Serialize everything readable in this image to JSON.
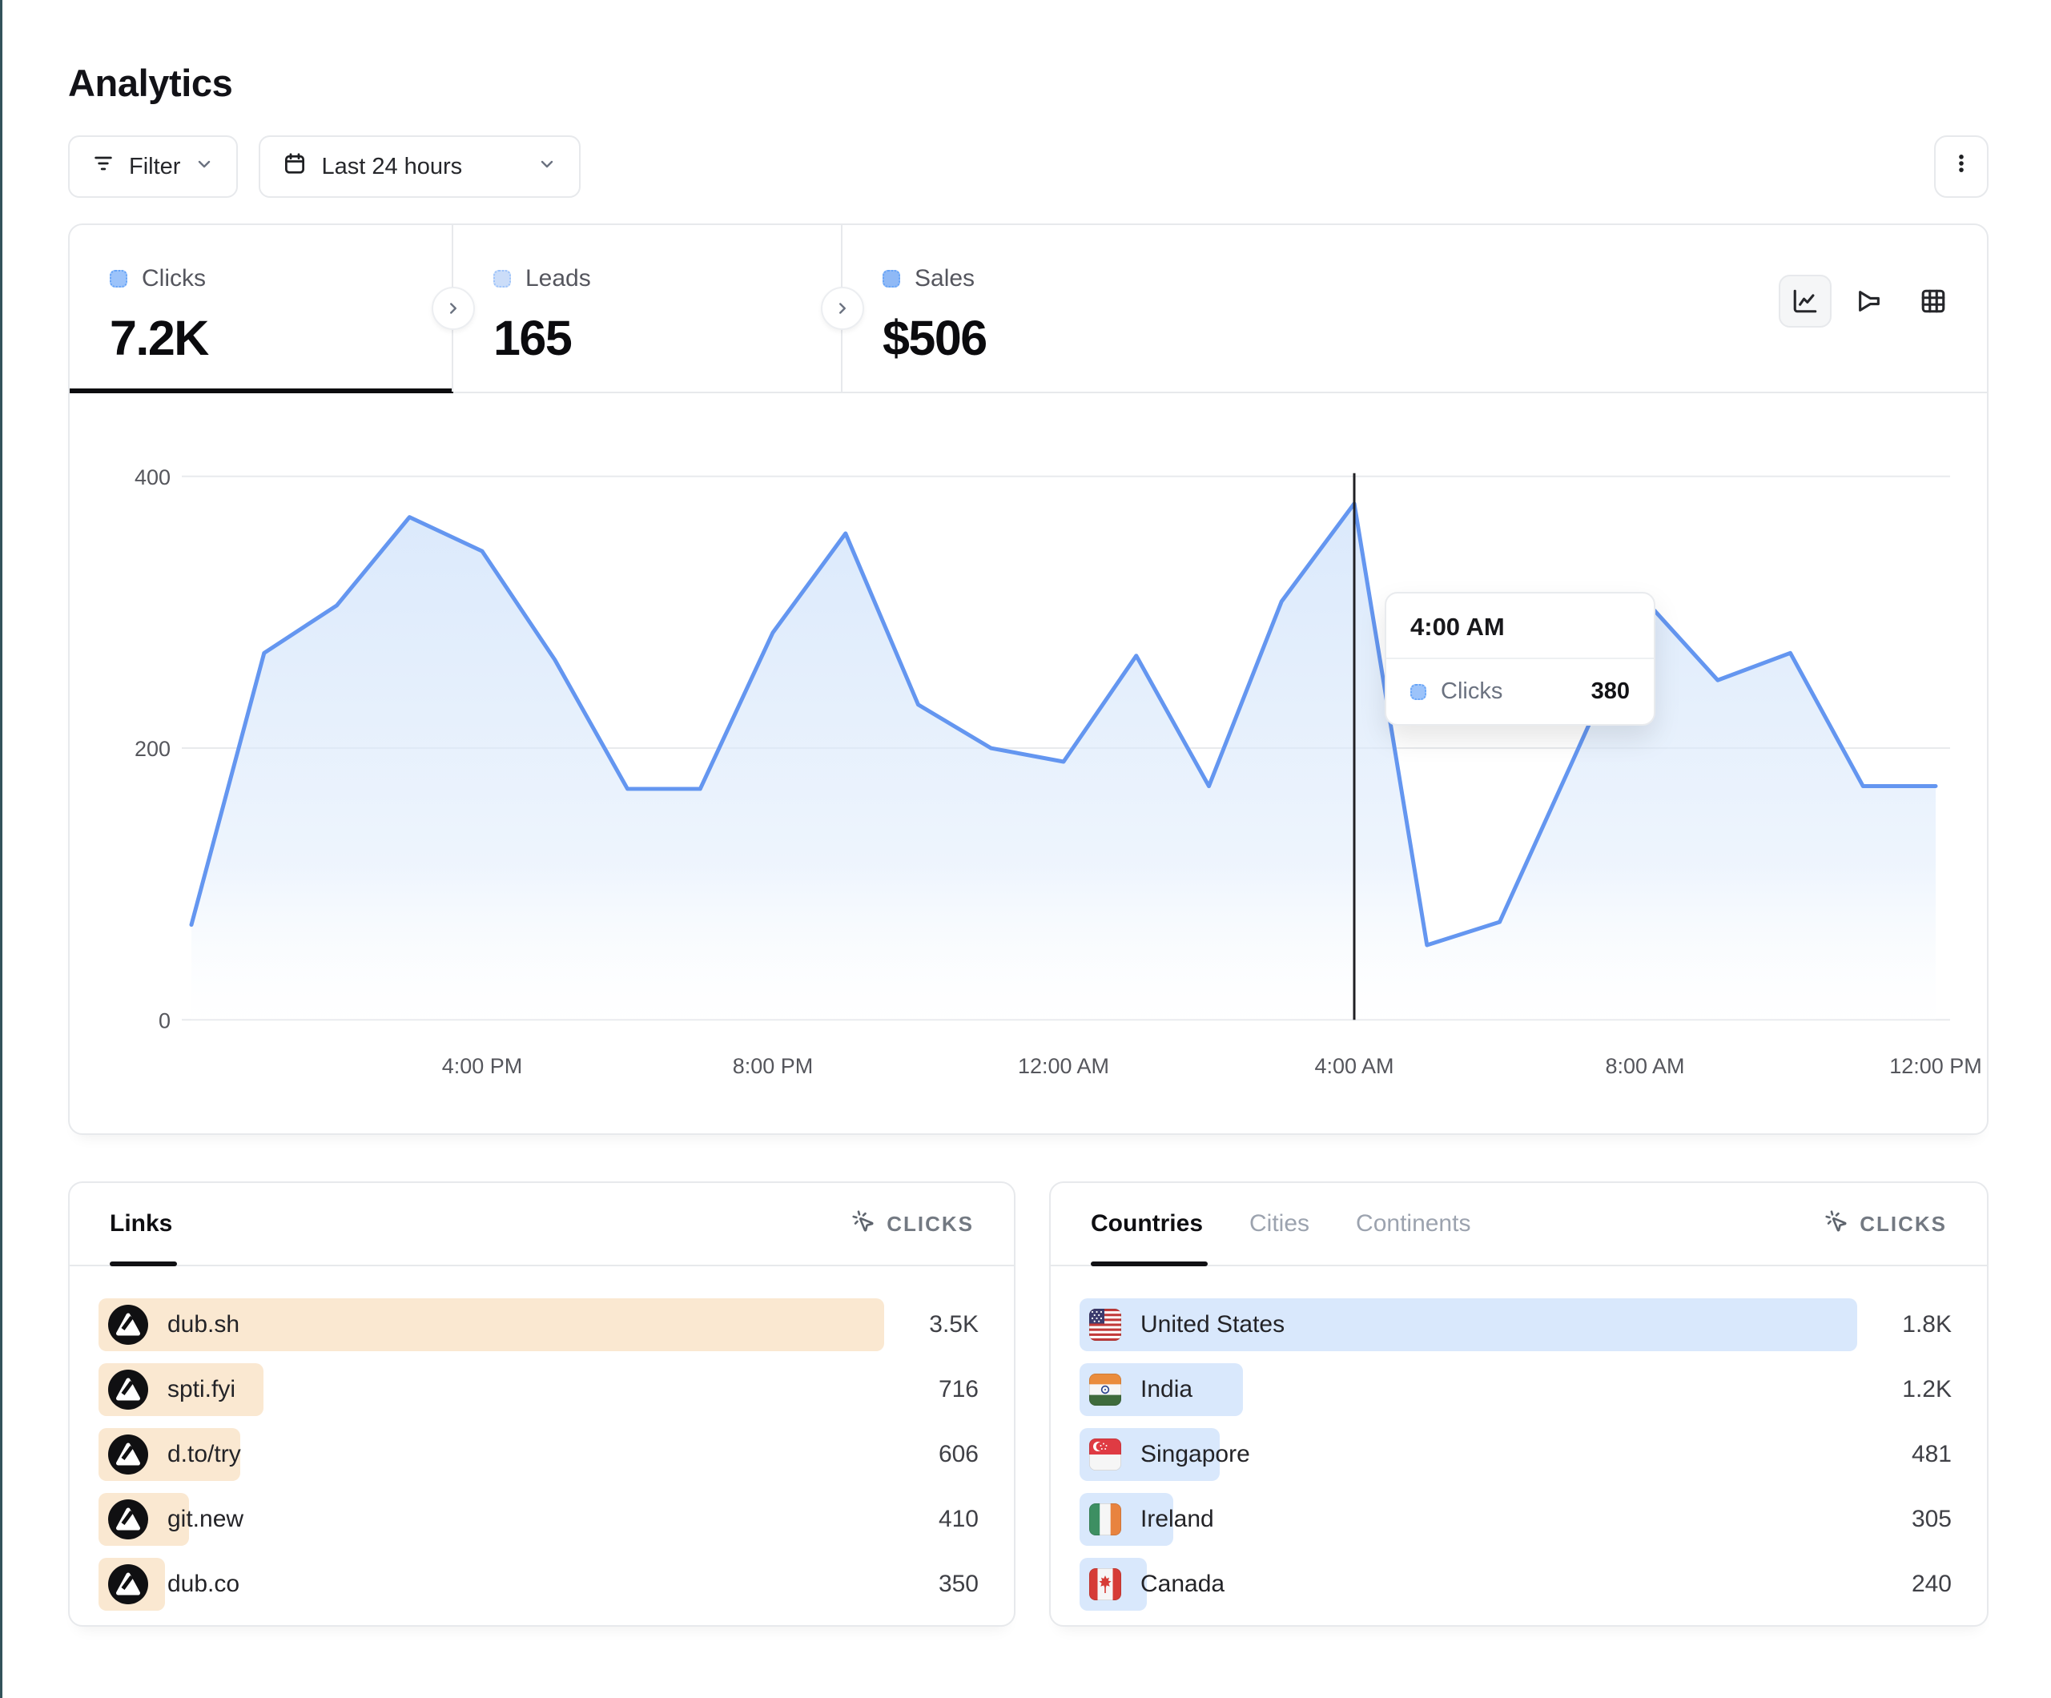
{
  "page": {
    "title": "Analytics"
  },
  "toolbar": {
    "filter_label": "Filter",
    "date_range_label": "Last 24 hours"
  },
  "stats": {
    "tabs": [
      {
        "label": "Clicks",
        "value": "7.2K",
        "active": true,
        "swatch": "#9CC3FA",
        "swatch_border": "#66A4F7"
      },
      {
        "label": "Leads",
        "value": "165",
        "active": false,
        "swatch": "#CBDDF9",
        "swatch_border": "#9CC3FA"
      },
      {
        "label": "Sales",
        "value": "$506",
        "active": false,
        "swatch": "#8FB9F6",
        "swatch_border": "#66A4F7"
      }
    ]
  },
  "view_switcher": {
    "options": [
      "line-chart",
      "funnel",
      "table"
    ],
    "active": "line-chart"
  },
  "chart_data": {
    "type": "area",
    "x": [
      "12:00 PM",
      "1:00 PM",
      "2:00 PM",
      "3:00 PM",
      "4:00 PM",
      "5:00 PM",
      "6:00 PM",
      "7:00 PM",
      "8:00 PM",
      "9:00 PM",
      "10:00 PM",
      "11:00 PM",
      "12:00 AM",
      "1:00 AM",
      "2:00 AM",
      "3:00 AM",
      "4:00 AM",
      "5:00 AM",
      "6:00 AM",
      "7:00 AM",
      "8:00 AM",
      "9:00 AM",
      "10:00 AM",
      "11:00 AM",
      "12:00 PM"
    ],
    "series": [
      {
        "name": "Clicks",
        "values": [
          70,
          270,
          305,
          370,
          345,
          265,
          170,
          170,
          285,
          358,
          232,
          200,
          190,
          268,
          172,
          308,
          380,
          55,
          72,
          190,
          309,
          250,
          270,
          172,
          172
        ],
        "color": "#6496F0",
        "fill_top": "#D9E8FB"
      }
    ],
    "x_ticks": [
      "4:00 PM",
      "8:00 PM",
      "12:00 AM",
      "4:00 AM",
      "8:00 AM",
      "12:00 PM"
    ],
    "y_ticks": [
      0,
      200,
      400
    ],
    "ylim": [
      0,
      400
    ],
    "grid": "horizontal",
    "crosshair_x": "4:00 AM",
    "tooltip": {
      "title": "4:00 AM",
      "series": "Clicks",
      "value": "380",
      "swatch": "#9CC3FA",
      "swatch_border": "#66A4F7"
    }
  },
  "links_panel": {
    "tab": "Links",
    "sort_label": "CLICKS",
    "bar_color": "#FAE8D1",
    "rows": [
      {
        "label": "dub.sh",
        "value": "3.5K",
        "bar_pct": 100
      },
      {
        "label": "spti.fyi",
        "value": "716",
        "bar_pct": 21
      },
      {
        "label": "d.to/try",
        "value": "606",
        "bar_pct": 18
      },
      {
        "label": "git.new",
        "value": "410",
        "bar_pct": 11.5
      },
      {
        "label": "dub.co",
        "value": "350",
        "bar_pct": 8.5
      }
    ]
  },
  "countries_panel": {
    "tabs": [
      {
        "label": "Countries",
        "active": true
      },
      {
        "label": "Cities",
        "active": false
      },
      {
        "label": "Continents",
        "active": false
      }
    ],
    "sort_label": "CLICKS",
    "bar_color": "#D9E8FC",
    "rows": [
      {
        "label": "United States",
        "flag": "us",
        "value": "1.8K",
        "bar_pct": 100
      },
      {
        "label": "India",
        "flag": "in",
        "value": "1.2K",
        "bar_pct": 21
      },
      {
        "label": "Singapore",
        "flag": "sg",
        "value": "481",
        "bar_pct": 18
      },
      {
        "label": "Ireland",
        "flag": "ie",
        "value": "305",
        "bar_pct": 12
      },
      {
        "label": "Canada",
        "flag": "ca",
        "value": "240",
        "bar_pct": 8.7
      }
    ]
  }
}
